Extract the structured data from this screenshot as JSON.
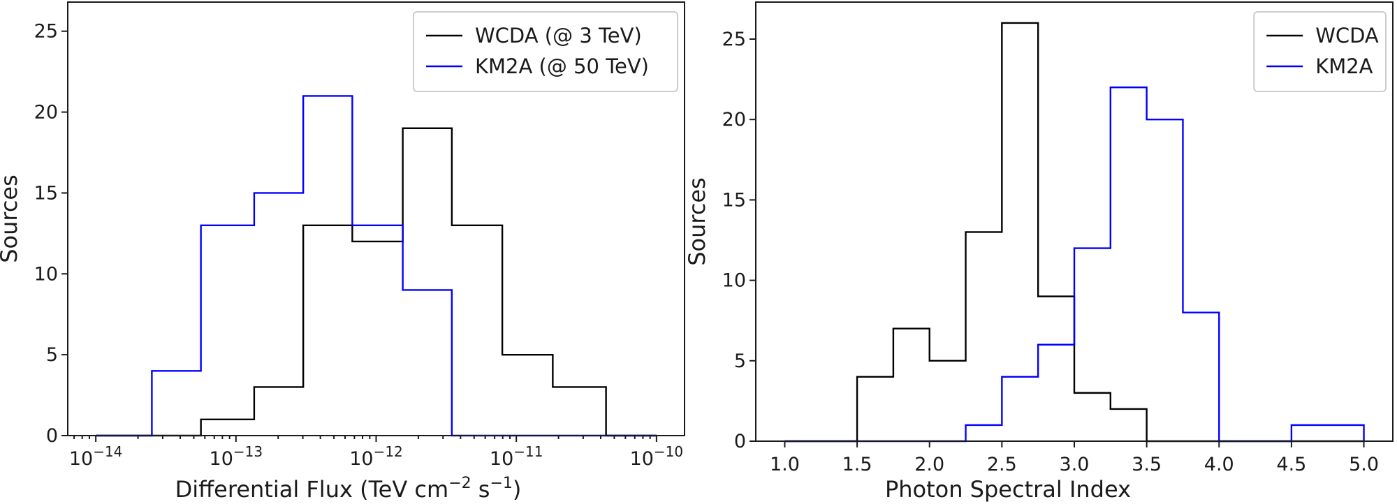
{
  "chart_data": [
    {
      "type": "histogram",
      "xscale": "log",
      "xlabel_main": "Differential Flux (TeV cm",
      "xlabel_sup1": "−2",
      "xlabel_mid": " s",
      "xlabel_sup2": "−1",
      "xlabel_end": ")",
      "ylabel": "Sources",
      "xlim_log10": [
        -14.2,
        -9.8
      ],
      "ylim": [
        0,
        26.8
      ],
      "yticks": [
        "0",
        "5",
        "10",
        "15",
        "20",
        "25"
      ],
      "ytick_values": [
        0,
        5,
        10,
        15,
        20,
        25
      ],
      "xtick_exponents": [
        -14,
        -13,
        -12,
        -11,
        -10
      ],
      "xtick_base": "10",
      "xtick_labels": [
        "−14",
        "−13",
        "−12",
        "−11",
        "−10"
      ],
      "bin_edges_log10": [
        -14.0,
        -13.6,
        -13.25,
        -12.87,
        -12.52,
        -12.17,
        -11.81,
        -11.46,
        -11.1,
        -10.74,
        -10.36,
        -10.0
      ],
      "series": [
        {
          "name": "WCDA (@ 3 TeV)",
          "color": "#000000",
          "values": [
            0,
            0,
            1,
            3,
            13,
            12,
            19,
            13,
            5,
            3,
            0
          ]
        },
        {
          "name": "KM2A (@ 50 TeV)",
          "color": "#0000ff",
          "values": [
            0,
            4,
            13,
            15,
            21,
            13,
            9,
            0,
            0,
            0,
            0
          ]
        }
      ],
      "legend": [
        "WCDA (@ 3 TeV)",
        "KM2A (@ 50 TeV)"
      ],
      "legend_position": "upper-right"
    },
    {
      "type": "histogram",
      "xscale": "linear",
      "xlabel": "Photon Spectral Index",
      "ylabel": "Sources",
      "xlim": [
        0.8,
        5.2
      ],
      "ylim": [
        0,
        27.3
      ],
      "yticks": [
        "0",
        "5",
        "10",
        "15",
        "20",
        "25"
      ],
      "ytick_values": [
        0,
        5,
        10,
        15,
        20,
        25
      ],
      "xticks": [
        "1.0",
        "1.5",
        "2.0",
        "2.5",
        "3.0",
        "3.5",
        "4.0",
        "4.5",
        "5.0"
      ],
      "xtick_values": [
        1.0,
        1.5,
        2.0,
        2.5,
        3.0,
        3.5,
        4.0,
        4.5,
        5.0
      ],
      "bin_edges": [
        1.0,
        1.25,
        1.5,
        1.75,
        2.0,
        2.25,
        2.5,
        2.75,
        3.0,
        3.25,
        3.5,
        3.75,
        4.0,
        4.25,
        4.5,
        4.75,
        5.0
      ],
      "series": [
        {
          "name": "WCDA",
          "color": "#000000",
          "values": [
            0,
            0,
            4,
            7,
            5,
            13,
            26,
            9,
            3,
            2,
            0,
            0,
            0,
            0,
            0,
            0
          ]
        },
        {
          "name": "KM2A",
          "color": "#0000ff",
          "values": [
            0,
            0,
            0,
            0,
            0,
            1,
            4,
            6,
            12,
            22,
            20,
            8,
            0,
            0,
            1,
            1
          ]
        }
      ],
      "legend": [
        "WCDA",
        "KM2A"
      ],
      "legend_position": "upper-right"
    }
  ]
}
